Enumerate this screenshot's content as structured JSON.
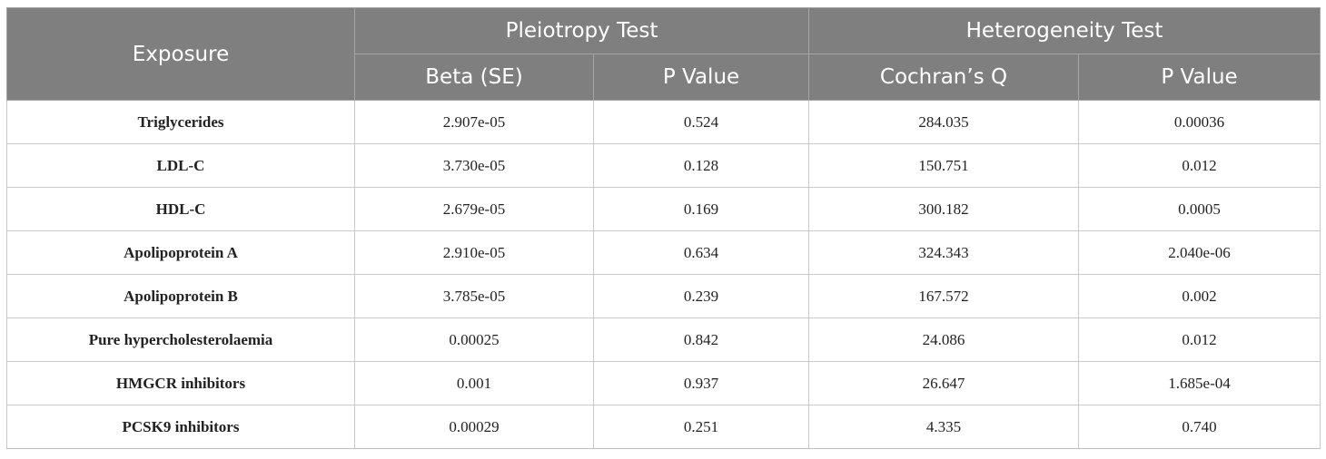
{
  "table": {
    "header": {
      "exposure": "Exposure",
      "pleiotropy_group": "Pleiotropy Test",
      "heterogeneity_group": "Heterogeneity Test",
      "beta_se": "Beta (SE)",
      "pleiotropy_p": "P Value",
      "cochrans_q": "Cochran’s Q",
      "heterogeneity_p": "P Value"
    },
    "rows": [
      {
        "exposure": "Triglycerides",
        "beta_se": "2.907e-05",
        "pleiotropy_p": "0.524",
        "cochrans_q": "284.035",
        "heterogeneity_p": "0.00036"
      },
      {
        "exposure": "LDL-C",
        "beta_se": "3.730e-05",
        "pleiotropy_p": "0.128",
        "cochrans_q": "150.751",
        "heterogeneity_p": "0.012"
      },
      {
        "exposure": "HDL-C",
        "beta_se": "2.679e-05",
        "pleiotropy_p": "0.169",
        "cochrans_q": "300.182",
        "heterogeneity_p": "0.0005"
      },
      {
        "exposure": "Apolipoprotein A",
        "beta_se": "2.910e-05",
        "pleiotropy_p": "0.634",
        "cochrans_q": "324.343",
        "heterogeneity_p": "2.040e-06"
      },
      {
        "exposure": "Apolipoprotein B",
        "beta_se": "3.785e-05",
        "pleiotropy_p": "0.239",
        "cochrans_q": "167.572",
        "heterogeneity_p": "0.002"
      },
      {
        "exposure": "Pure hypercholesterolaemia",
        "beta_se": "0.00025",
        "pleiotropy_p": "0.842",
        "cochrans_q": "24.086",
        "heterogeneity_p": "0.012"
      },
      {
        "exposure": "HMGCR inhibitors",
        "beta_se": "0.001",
        "pleiotropy_p": "0.937",
        "cochrans_q": "26.647",
        "heterogeneity_p": "1.685e-04"
      },
      {
        "exposure": "PCSK9 inhibitors",
        "beta_se": "0.00029",
        "pleiotropy_p": "0.251",
        "cochrans_q": "4.335",
        "heterogeneity_p": "0.740"
      }
    ]
  }
}
